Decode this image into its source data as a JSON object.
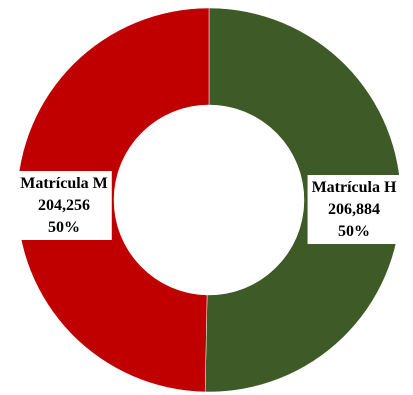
{
  "chart_data": {
    "type": "pie",
    "variant": "donut",
    "legend": "none",
    "slices": [
      {
        "name": "Matrícula H",
        "value": 206884,
        "value_label": "206,884",
        "percent_label": "50%",
        "color": "#3d5a27"
      },
      {
        "name": "Matrícula M",
        "value": 204256,
        "value_label": "204,256",
        "percent_label": "50%",
        "color": "#c00000"
      }
    ]
  }
}
